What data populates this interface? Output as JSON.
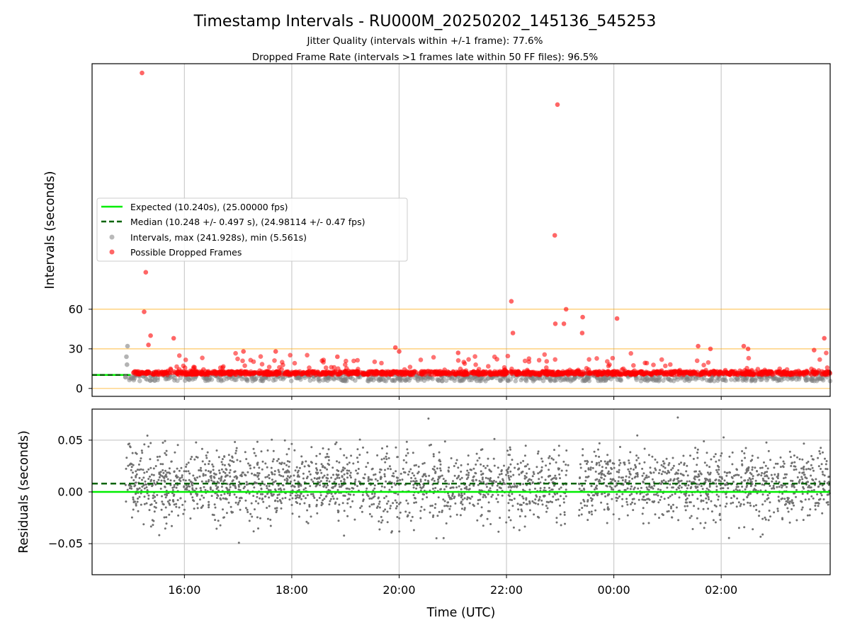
{
  "chart_data": {
    "title": "Timestamp Intervals - RU000M_20250202_145136_545253",
    "subtitle_lines": [
      "Jitter Quality (intervals within +/-1 frame): 77.6%",
      "Dropped Frame Rate (intervals >1 frames late within 50 FF files): 96.5%"
    ],
    "xlabel": "Time (UTC)",
    "x_ticks": [
      "16:00",
      "18:00",
      "20:00",
      "22:00",
      "00:00",
      "02:00"
    ],
    "x_tick_hours": [
      16,
      18,
      20,
      22,
      24,
      26
    ],
    "x_range_hours": [
      14.28,
      28.03
    ],
    "panels": [
      {
        "type": "scatter",
        "ylabel": "Intervals (seconds)",
        "ylim": [
          -6,
          246
        ],
        "y_ticks": [
          0,
          30,
          60
        ],
        "reference_lines_y": [
          0,
          30,
          60
        ],
        "reference_line_color": "#ffa500",
        "grid": "vertical",
        "legend_location": "center-left",
        "series": [
          {
            "name": "Expected (10.240s), (25.00000 fps)",
            "kind": "line",
            "style": "solid",
            "color": "#00ee00",
            "y": 10.24,
            "x_range_hours": [
              14.28,
              15.0
            ]
          },
          {
            "name": "Median (10.248 +/- 0.497 s), (24.98114 +/- 0.47 fps)",
            "kind": "line",
            "style": "dashed",
            "color": "#006400",
            "y": 10.248,
            "x_range_hours": [
              14.28,
              15.0
            ]
          },
          {
            "name": "Intervals, max (241.928s), min (5.561s)",
            "kind": "scatter",
            "color": "#808080",
            "dense_band": {
              "x_range_hours": [
                14.9,
                28.03
              ],
              "y_min": 5.6,
              "y_max": 12
            }
          },
          {
            "name": "Possible Dropped Frames",
            "kind": "scatter",
            "color": "#ff0000",
            "dense_band": {
              "x_range_hours": [
                15.05,
                28.03
              ],
              "y_min": 10.3,
              "y_max": 13
            }
          }
        ],
        "notable_points": [
          {
            "x": 15.21,
            "y": 239,
            "series": "Possible Dropped Frames"
          },
          {
            "x": 22.95,
            "y": 215,
            "series": "Possible Dropped Frames"
          },
          {
            "x": 15.28,
            "y": 88,
            "series": "Possible Dropped Frames"
          },
          {
            "x": 22.9,
            "y": 116,
            "series": "Possible Dropped Frames"
          },
          {
            "x": 22.09,
            "y": 66,
            "series": "Possible Dropped Frames"
          },
          {
            "x": 23.11,
            "y": 60,
            "series": "Possible Dropped Frames"
          },
          {
            "x": 15.25,
            "y": 58,
            "series": "Possible Dropped Frames"
          },
          {
            "x": 23.42,
            "y": 54,
            "series": "Possible Dropped Frames"
          },
          {
            "x": 24.06,
            "y": 53,
            "series": "Possible Dropped Frames"
          },
          {
            "x": 22.91,
            "y": 49,
            "series": "Possible Dropped Frames"
          },
          {
            "x": 23.07,
            "y": 49,
            "series": "Possible Dropped Frames"
          },
          {
            "x": 23.41,
            "y": 42,
            "series": "Possible Dropped Frames"
          },
          {
            "x": 22.12,
            "y": 42,
            "series": "Possible Dropped Frames"
          },
          {
            "x": 15.37,
            "y": 40,
            "series": "Possible Dropped Frames"
          },
          {
            "x": 15.8,
            "y": 38,
            "series": "Possible Dropped Frames"
          },
          {
            "x": 27.92,
            "y": 38,
            "series": "Possible Dropped Frames"
          },
          {
            "x": 15.33,
            "y": 33,
            "series": "Possible Dropped Frames"
          },
          {
            "x": 26.42,
            "y": 32,
            "series": "Possible Dropped Frames"
          },
          {
            "x": 26.5,
            "y": 30,
            "series": "Possible Dropped Frames"
          },
          {
            "x": 19.93,
            "y": 31,
            "series": "Possible Dropped Frames"
          },
          {
            "x": 20.0,
            "y": 28,
            "series": "Possible Dropped Frames"
          },
          {
            "x": 25.57,
            "y": 32,
            "series": "Possible Dropped Frames"
          },
          {
            "x": 25.8,
            "y": 30,
            "series": "Possible Dropped Frames"
          },
          {
            "x": 27.73,
            "y": 29,
            "series": "Possible Dropped Frames"
          },
          {
            "x": 18.85,
            "y": 24,
            "series": "Possible Dropped Frames"
          },
          {
            "x": 21.1,
            "y": 27,
            "series": "Possible Dropped Frames"
          },
          {
            "x": 17.1,
            "y": 28,
            "series": "Possible Dropped Frames"
          },
          {
            "x": 17.7,
            "y": 28,
            "series": "Possible Dropped Frames"
          },
          {
            "x": 14.94,
            "y": 32,
            "series": "Intervals, max (241.928s), min (5.561s)"
          },
          {
            "x": 14.92,
            "y": 24,
            "series": "Intervals, max (241.928s), min (5.561s)"
          },
          {
            "x": 14.93,
            "y": 18,
            "series": "Intervals, max (241.928s), min (5.561s)"
          }
        ]
      },
      {
        "type": "scatter",
        "ylabel": "Residuals (seconds)",
        "ylim": [
          -0.08,
          0.08
        ],
        "y_ticks": [
          0.05,
          0.0,
          -0.05
        ],
        "y_tick_labels": [
          "0.05",
          "0.00",
          "−0.05"
        ],
        "grid": "both",
        "series": [
          {
            "kind": "line",
            "style": "solid",
            "color": "#00ee00",
            "y": 0.0
          },
          {
            "kind": "line",
            "style": "dashed",
            "color": "#006400",
            "y": 0.008
          },
          {
            "kind": "scatter",
            "color": "#707070",
            "distribution": {
              "x_range_hours": [
                14.9,
                28.03
              ],
              "gap_hours": [
                23.15,
                23.35
              ],
              "mean": 0.007,
              "std": 0.017,
              "y_clip": [
                -0.08,
                0.08
              ]
            }
          }
        ]
      }
    ]
  }
}
